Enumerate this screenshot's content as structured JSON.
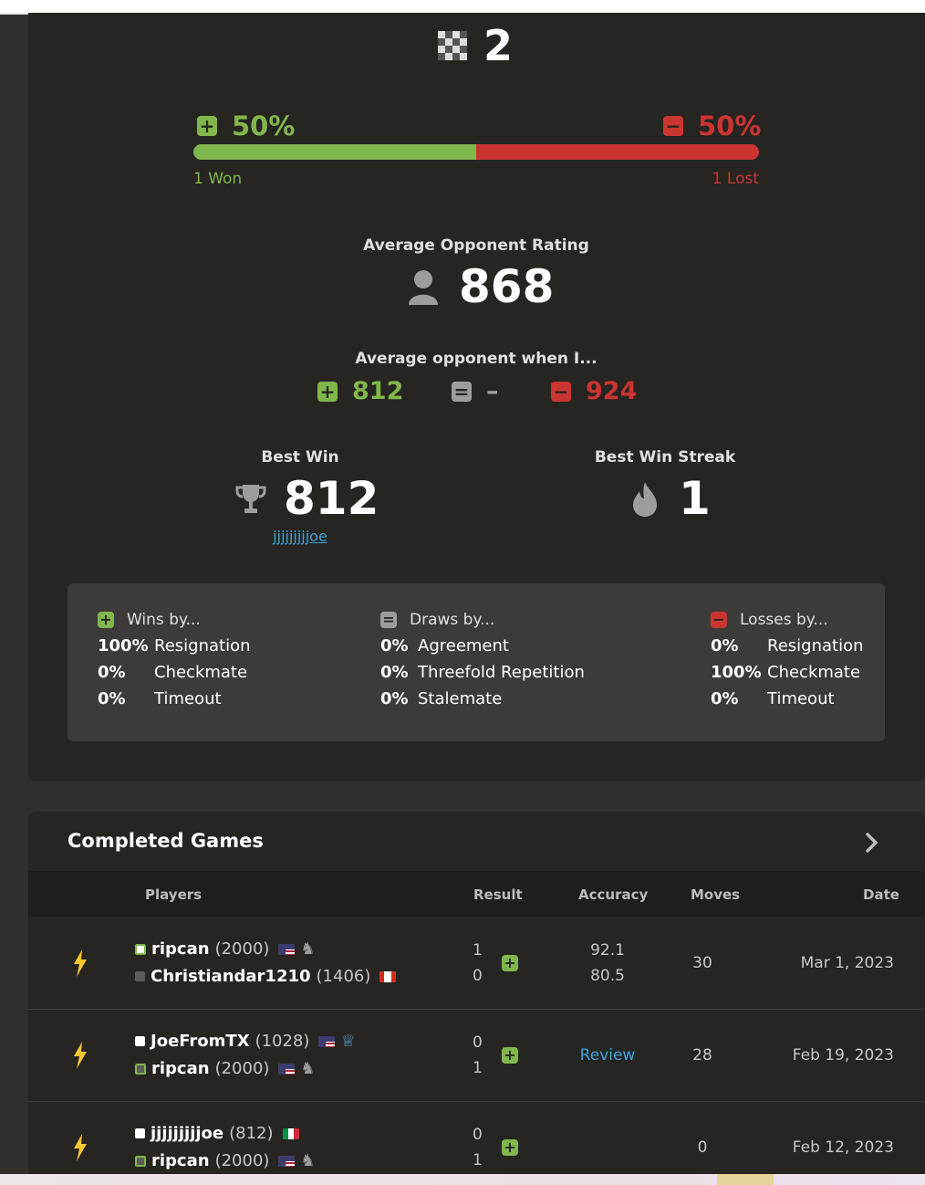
{
  "summary": {
    "games_count": "2",
    "won_pct": "50%",
    "lost_pct": "50%",
    "won_fraction": 0.5,
    "won_label": "1 Won",
    "lost_label": "1 Lost"
  },
  "avg_rating": {
    "label": "Average Opponent Rating",
    "value": "868"
  },
  "avg_when": {
    "label": "Average opponent when I...",
    "win": "812",
    "draw": "–",
    "loss": "924"
  },
  "best_win": {
    "label": "Best Win",
    "value": "812",
    "opponent": "jjjjjjjjjoe"
  },
  "best_streak": {
    "label": "Best Win Streak",
    "value": "1"
  },
  "breakdown": {
    "wins": {
      "title": "Wins by...",
      "rows": [
        {
          "pct": "100%",
          "label": "Resignation"
        },
        {
          "pct": "0%",
          "label": "Checkmate"
        },
        {
          "pct": "0%",
          "label": "Timeout"
        }
      ]
    },
    "draws": {
      "title": "Draws by...",
      "rows": [
        {
          "pct": "0%",
          "label": "Agreement"
        },
        {
          "pct": "0%",
          "label": "Threefold Repetition"
        },
        {
          "pct": "0%",
          "label": "Stalemate"
        }
      ]
    },
    "losses": {
      "title": "Losses by...",
      "rows": [
        {
          "pct": "0%",
          "label": "Resignation"
        },
        {
          "pct": "100%",
          "label": "Checkmate"
        },
        {
          "pct": "0%",
          "label": "Timeout"
        }
      ]
    }
  },
  "games": {
    "title": "Completed Games",
    "columns": {
      "players": "Players",
      "result": "Result",
      "accuracy": "Accuracy",
      "moves": "Moves",
      "date": "Date"
    },
    "rows": [
      {
        "white": {
          "name": "ripcan",
          "rating": "(2000)"
        },
        "black": {
          "name": "Christiandar1210",
          "rating": "(1406)"
        },
        "res_top": "1",
        "res_bottom": "0",
        "acc_top": "92.1",
        "acc_bottom": "80.5",
        "moves": "30",
        "date": "Mar 1, 2023"
      },
      {
        "white": {
          "name": "JoeFromTX",
          "rating": "(1028)"
        },
        "black": {
          "name": "ripcan",
          "rating": "(2000)"
        },
        "res_top": "0",
        "res_bottom": "1",
        "review": "Review",
        "moves": "28",
        "date": "Feb 19, 2023"
      },
      {
        "white": {
          "name": "jjjjjjjjjoe",
          "rating": "(812)"
        },
        "black": {
          "name": "ripcan",
          "rating": "(2000)"
        },
        "res_top": "0",
        "res_bottom": "1",
        "moves": "0",
        "date": "Feb 12, 2023"
      }
    ]
  },
  "colors": {
    "win": "#81b64c",
    "loss": "#ca3431",
    "link": "#3ea2d8",
    "bolt": "#f7c631"
  }
}
